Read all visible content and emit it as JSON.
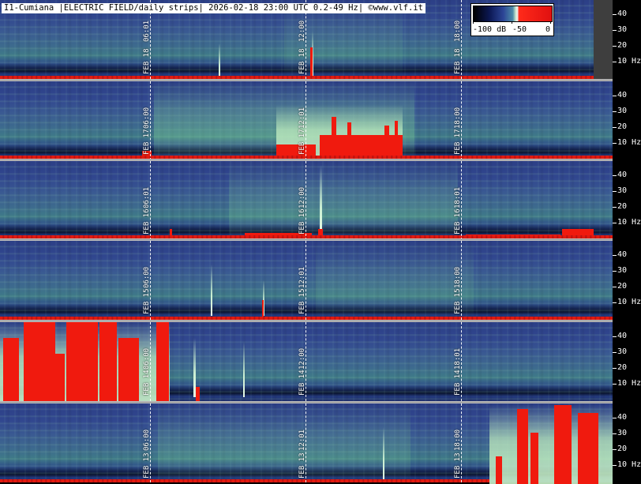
{
  "header": {
    "title": "I1-Cumiana |ELECTRIC FIELD/daily strips| 2026-02-18 23:00 UTC 0.2-49 Hz| ©www.vlf.it"
  },
  "legend": {
    "min_label": "-100 dB",
    "mid_label": "-50",
    "max_label": "0"
  },
  "axis": {
    "labels": [
      "40",
      "30",
      "20",
      "10 Hz"
    ]
  },
  "strips": [
    {
      "id": "feb18",
      "markers": [
        {
          "date": "FEB 18",
          "time": "06:01"
        },
        {
          "date": "FEB 18",
          "time": "12:00"
        },
        {
          "date": "FEB 18",
          "time": "18:00"
        }
      ]
    },
    {
      "id": "feb17",
      "markers": [
        {
          "date": "FEB 17",
          "time": "06:00"
        },
        {
          "date": "FEB 17",
          "time": "12:01"
        },
        {
          "date": "FEB 17",
          "time": "18:00"
        }
      ]
    },
    {
      "id": "feb16",
      "markers": [
        {
          "date": "FEB 16",
          "time": "06:01"
        },
        {
          "date": "FEB 16",
          "time": "12:00"
        },
        {
          "date": "FEB 16",
          "time": "18:01"
        }
      ]
    },
    {
      "id": "feb15",
      "markers": [
        {
          "date": "FEB 15",
          "time": "06:00"
        },
        {
          "date": "FEB 15",
          "time": "12:01"
        },
        {
          "date": "FEB 15",
          "time": "18:00"
        }
      ]
    },
    {
      "id": "feb14",
      "markers": [
        {
          "date": "FEB 14",
          "time": "06:00"
        },
        {
          "date": "FEB 14",
          "time": "12:00"
        },
        {
          "date": "FEB 14",
          "time": "18:01"
        }
      ]
    },
    {
      "id": "feb13",
      "markers": [
        {
          "date": "FEB 13",
          "time": "06:00"
        },
        {
          "date": "FEB 13",
          "time": "12:01"
        },
        {
          "date": "FEB 13",
          "time": "18:00"
        }
      ]
    }
  ],
  "colors": {
    "background": "#2c3f86",
    "activity_red": "#f01a0e",
    "activity_green": "#bfe8c4",
    "separator": "#bdbdbd"
  }
}
